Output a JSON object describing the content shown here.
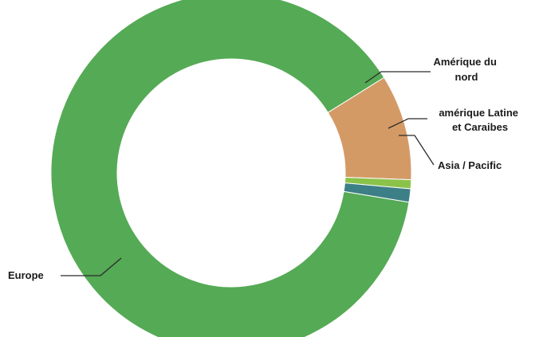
{
  "chart_data": {
    "type": "pie",
    "title": "",
    "categories": [
      "Amérique du nord",
      "amérique Latine et Caraibes",
      "Asia / Pacific",
      "Europe"
    ],
    "values": [
      9.5,
      0.8,
      1.2,
      88.5
    ],
    "unit": "%",
    "colors": [
      "#d49a66",
      "#8bc34a",
      "#3d7f86",
      "#55aa55"
    ],
    "label_lines": [
      [
        "Amérique du",
        "nord"
      ],
      [
        "amérique Latine",
        "et Caraibes"
      ],
      [
        "Asia / Pacific"
      ],
      [
        "Europe"
      ]
    ],
    "legend": "none",
    "donut": true
  }
}
